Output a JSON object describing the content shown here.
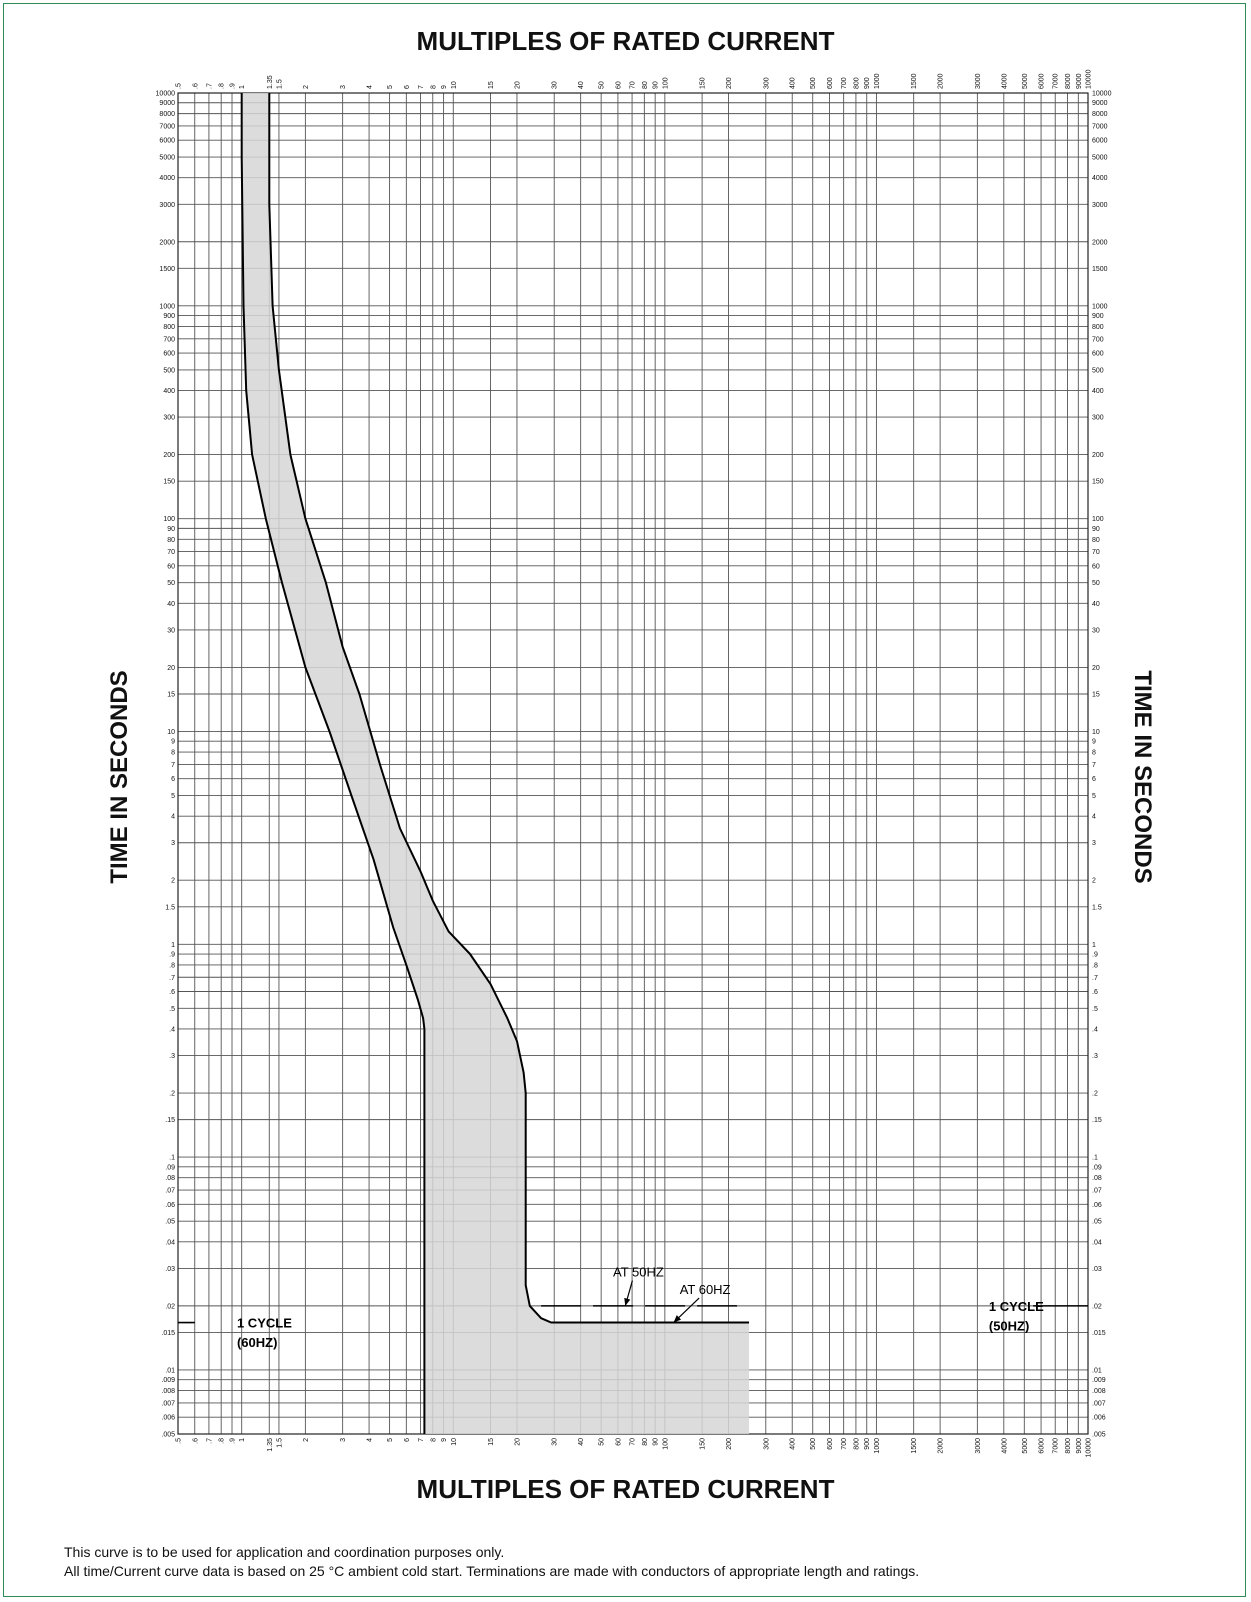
{
  "chart_data": {
    "type": "line",
    "title_top": "MULTIPLES OF RATED CURRENT",
    "xlabel": "MULTIPLES OF RATED CURRENT",
    "ylabel_left": "TIME IN SECONDS",
    "ylabel_right": "TIME IN SECONDS",
    "x_scale": "log",
    "y_scale": "log",
    "xlim": [
      0.5,
      10000
    ],
    "ylim": [
      0.005,
      10000
    ],
    "grid": true,
    "x_ticks": [
      {
        "v": 0.5,
        "label": ".5"
      },
      {
        "v": 0.6,
        "label": ".6"
      },
      {
        "v": 0.7,
        "label": ".7"
      },
      {
        "v": 0.8,
        "label": ".8"
      },
      {
        "v": 0.9,
        "label": ".9"
      },
      {
        "v": 1,
        "label": "1"
      },
      {
        "v": 1.35,
        "label": "1.35"
      },
      {
        "v": 1.5,
        "label": "1.5"
      },
      {
        "v": 2,
        "label": "2"
      },
      {
        "v": 3,
        "label": "3"
      },
      {
        "v": 4,
        "label": "4"
      },
      {
        "v": 5,
        "label": "5"
      },
      {
        "v": 6,
        "label": "6"
      },
      {
        "v": 7,
        "label": "7"
      },
      {
        "v": 8,
        "label": "8"
      },
      {
        "v": 9,
        "label": "9"
      },
      {
        "v": 10,
        "label": "10"
      },
      {
        "v": 15,
        "label": "15"
      },
      {
        "v": 20,
        "label": "20"
      },
      {
        "v": 30,
        "label": "30"
      },
      {
        "v": 40,
        "label": "40"
      },
      {
        "v": 50,
        "label": "50"
      },
      {
        "v": 60,
        "label": "60"
      },
      {
        "v": 70,
        "label": "70"
      },
      {
        "v": 80,
        "label": "80"
      },
      {
        "v": 90,
        "label": "90"
      },
      {
        "v": 100,
        "label": "100"
      },
      {
        "v": 150,
        "label": "150"
      },
      {
        "v": 200,
        "label": "200"
      },
      {
        "v": 300,
        "label": "300"
      },
      {
        "v": 400,
        "label": "400"
      },
      {
        "v": 500,
        "label": "500"
      },
      {
        "v": 600,
        "label": "600"
      },
      {
        "v": 700,
        "label": "700"
      },
      {
        "v": 800,
        "label": "800"
      },
      {
        "v": 900,
        "label": "900"
      },
      {
        "v": 1000,
        "label": "1000"
      },
      {
        "v": 1500,
        "label": "1500"
      },
      {
        "v": 2000,
        "label": "2000"
      },
      {
        "v": 3000,
        "label": "3000"
      },
      {
        "v": 4000,
        "label": "4000"
      },
      {
        "v": 5000,
        "label": "5000"
      },
      {
        "v": 6000,
        "label": "6000"
      },
      {
        "v": 7000,
        "label": "7000"
      },
      {
        "v": 8000,
        "label": "8000"
      },
      {
        "v": 9000,
        "label": "9000"
      },
      {
        "v": 10000,
        "label": "10000"
      }
    ],
    "y_ticks": [
      {
        "v": 10000,
        "label": "10000"
      },
      {
        "v": 9000,
        "label": "9000"
      },
      {
        "v": 8000,
        "label": "8000"
      },
      {
        "v": 7000,
        "label": "7000"
      },
      {
        "v": 6000,
        "label": "6000"
      },
      {
        "v": 5000,
        "label": "5000"
      },
      {
        "v": 4000,
        "label": "4000"
      },
      {
        "v": 3000,
        "label": "3000"
      },
      {
        "v": 2000,
        "label": "2000"
      },
      {
        "v": 1500,
        "label": "1500"
      },
      {
        "v": 1000,
        "label": "1000"
      },
      {
        "v": 900,
        "label": "900"
      },
      {
        "v": 800,
        "label": "800"
      },
      {
        "v": 700,
        "label": "700"
      },
      {
        "v": 600,
        "label": "600"
      },
      {
        "v": 500,
        "label": "500"
      },
      {
        "v": 400,
        "label": "400"
      },
      {
        "v": 300,
        "label": "300"
      },
      {
        "v": 200,
        "label": "200"
      },
      {
        "v": 150,
        "label": "150"
      },
      {
        "v": 100,
        "label": "100"
      },
      {
        "v": 90,
        "label": "90"
      },
      {
        "v": 80,
        "label": "80"
      },
      {
        "v": 70,
        "label": "70"
      },
      {
        "v": 60,
        "label": "60"
      },
      {
        "v": 50,
        "label": "50"
      },
      {
        "v": 40,
        "label": "40"
      },
      {
        "v": 30,
        "label": "30"
      },
      {
        "v": 20,
        "label": "20"
      },
      {
        "v": 15,
        "label": "15"
      },
      {
        "v": 10,
        "label": "10"
      },
      {
        "v": 9,
        "label": "9"
      },
      {
        "v": 8,
        "label": "8"
      },
      {
        "v": 7,
        "label": "7"
      },
      {
        "v": 6,
        "label": "6"
      },
      {
        "v": 5,
        "label": "5"
      },
      {
        "v": 4,
        "label": "4"
      },
      {
        "v": 3,
        "label": "3"
      },
      {
        "v": 2,
        "label": "2"
      },
      {
        "v": 1.5,
        "label": "1.5"
      },
      {
        "v": 1,
        "label": "1"
      },
      {
        "v": 0.9,
        "label": ".9"
      },
      {
        "v": 0.8,
        "label": ".8"
      },
      {
        "v": 0.7,
        "label": ".7"
      },
      {
        "v": 0.6,
        "label": ".6"
      },
      {
        "v": 0.5,
        "label": ".5"
      },
      {
        "v": 0.4,
        "label": ".4"
      },
      {
        "v": 0.3,
        "label": ".3"
      },
      {
        "v": 0.2,
        "label": ".2"
      },
      {
        "v": 0.15,
        "label": ".15"
      },
      {
        "v": 0.1,
        "label": ".1"
      },
      {
        "v": 0.09,
        "label": ".09"
      },
      {
        "v": 0.08,
        "label": ".08"
      },
      {
        "v": 0.07,
        "label": ".07"
      },
      {
        "v": 0.06,
        "label": ".06"
      },
      {
        "v": 0.05,
        "label": ".05"
      },
      {
        "v": 0.04,
        "label": ".04"
      },
      {
        "v": 0.03,
        "label": ".03"
      },
      {
        "v": 0.02,
        "label": ".02"
      },
      {
        "v": 0.015,
        "label": ".015"
      },
      {
        "v": 0.01,
        "label": ".01"
      },
      {
        "v": 0.009,
        "label": ".009"
      },
      {
        "v": 0.008,
        "label": ".008"
      },
      {
        "v": 0.007,
        "label": ".007"
      },
      {
        "v": 0.006,
        "label": ".006"
      },
      {
        "v": 0.005,
        "label": ".005"
      }
    ],
    "series": [
      {
        "points": [
          [
            1.0,
            10000
          ],
          [
            1.0,
            5000
          ],
          [
            1.02,
            1000
          ],
          [
            1.05,
            400
          ],
          [
            1.12,
            200
          ],
          [
            1.3,
            100
          ],
          [
            1.55,
            50
          ],
          [
            2.0,
            20
          ],
          [
            2.6,
            10
          ],
          [
            3.3,
            5
          ],
          [
            4.2,
            2.5
          ],
          [
            5.2,
            1.2
          ],
          [
            6.0,
            0.8
          ],
          [
            6.8,
            0.55
          ],
          [
            7.2,
            0.45
          ],
          [
            7.3,
            0.4
          ],
          [
            7.3,
            0.005
          ]
        ]
      },
      {
        "points": [
          [
            1.35,
            10000
          ],
          [
            1.35,
            3000
          ],
          [
            1.4,
            1000
          ],
          [
            1.5,
            500
          ],
          [
            1.7,
            200
          ],
          [
            2.0,
            100
          ],
          [
            2.5,
            50
          ],
          [
            3.0,
            25
          ],
          [
            3.6,
            15
          ],
          [
            4.5,
            7
          ],
          [
            5.6,
            3.5
          ],
          [
            7.0,
            2.2
          ],
          [
            8.0,
            1.6
          ],
          [
            9.5,
            1.15
          ],
          [
            12.0,
            0.9
          ],
          [
            15.0,
            0.65
          ],
          [
            18.0,
            0.45
          ],
          [
            20.0,
            0.35
          ],
          [
            21.5,
            0.25
          ],
          [
            22.0,
            0.2
          ],
          [
            22.0,
            0.025
          ],
          [
            23.0,
            0.02
          ],
          [
            26.0,
            0.0175
          ],
          [
            29.0,
            0.0167
          ],
          [
            250.0,
            0.0167
          ]
        ]
      }
    ],
    "shaded_band": "between series, down to .005",
    "reference_lines": [
      {
        "x_from": 26,
        "x_to": 250,
        "y": 0.02,
        "style": "dashed"
      },
      {
        "x_from": 0.5,
        "x_to": 0.6,
        "y": 0.0167,
        "style": "solid"
      },
      {
        "x_from": 5500,
        "x_to": 10000,
        "y": 0.02,
        "style": "solid"
      }
    ],
    "annotations": [
      {
        "text": "AT 50HZ",
        "x": 75,
        "y": 0.029,
        "arrow_to": [
          65,
          0.02
        ]
      },
      {
        "text": "AT 60HZ",
        "x": 155,
        "y": 0.024,
        "arrow_to": [
          110,
          0.0167
        ]
      },
      {
        "text": "1 CYCLE",
        "x": 0.95,
        "y": 0.0167
      },
      {
        "text": "(60HZ)",
        "x": 0.95,
        "y": 0.0135
      },
      {
        "text": "1 CYCLE",
        "x": 3400,
        "y": 0.02
      },
      {
        "text": "(50HZ)",
        "x": 3400,
        "y": 0.0162
      }
    ],
    "colors": {
      "grid": "#555555",
      "curve": "#000000",
      "band": "#d6d6d6",
      "frame": "#2e8b57"
    }
  },
  "footnotes": [
    "This curve is to be used for application and coordination purposes only.",
    "All time/Current curve data is based on 25 °C ambient cold start. Terminations are made with conductors of appropriate length and ratings."
  ]
}
